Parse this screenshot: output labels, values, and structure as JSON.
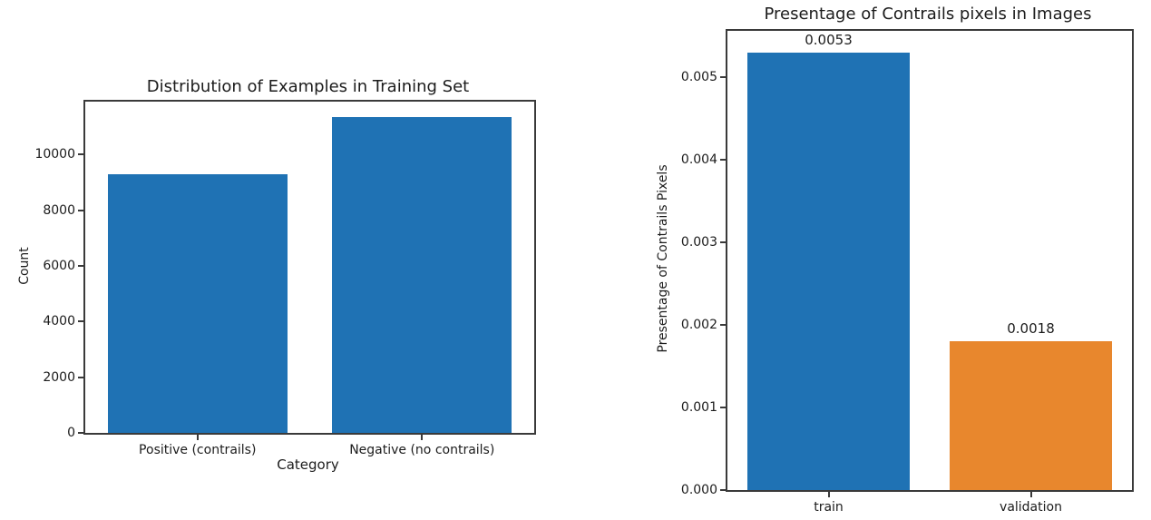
{
  "colors": {
    "bar_blue": "#1f72b4",
    "bar_orange": "#e8872d",
    "axis": "#3a3a3a",
    "text": "#1c1c1c",
    "background": "#ffffff"
  },
  "chart_data": [
    {
      "type": "bar",
      "title": "Distribution of Examples in Training Set",
      "xlabel": "Category",
      "ylabel": "Count",
      "categories": [
        "Positive (contrails)",
        "Negative (no contrails)"
      ],
      "values": [
        9300,
        11350
      ],
      "bar_colors": [
        "#1f72b4",
        "#1f72b4"
      ],
      "ytick_labels": [
        "0",
        "2000",
        "4000",
        "6000",
        "8000",
        "10000"
      ],
      "ylim": [
        0,
        11900
      ],
      "grid": false,
      "legend": "none"
    },
    {
      "type": "bar",
      "title": "Presentage of Contrails pixels in Images",
      "xlabel": "",
      "ylabel": "Presentage of Contrails Pixels",
      "categories": [
        "train",
        "validation"
      ],
      "values": [
        0.0053,
        0.0018
      ],
      "bar_value_labels": [
        "0.0053",
        "0.0018"
      ],
      "bar_colors": [
        "#1f72b4",
        "#e8872d"
      ],
      "ytick_labels": [
        "0.000",
        "0.001",
        "0.002",
        "0.003",
        "0.004",
        "0.005"
      ],
      "ylim": [
        0,
        0.00556
      ],
      "grid": false,
      "legend": "none"
    }
  ]
}
